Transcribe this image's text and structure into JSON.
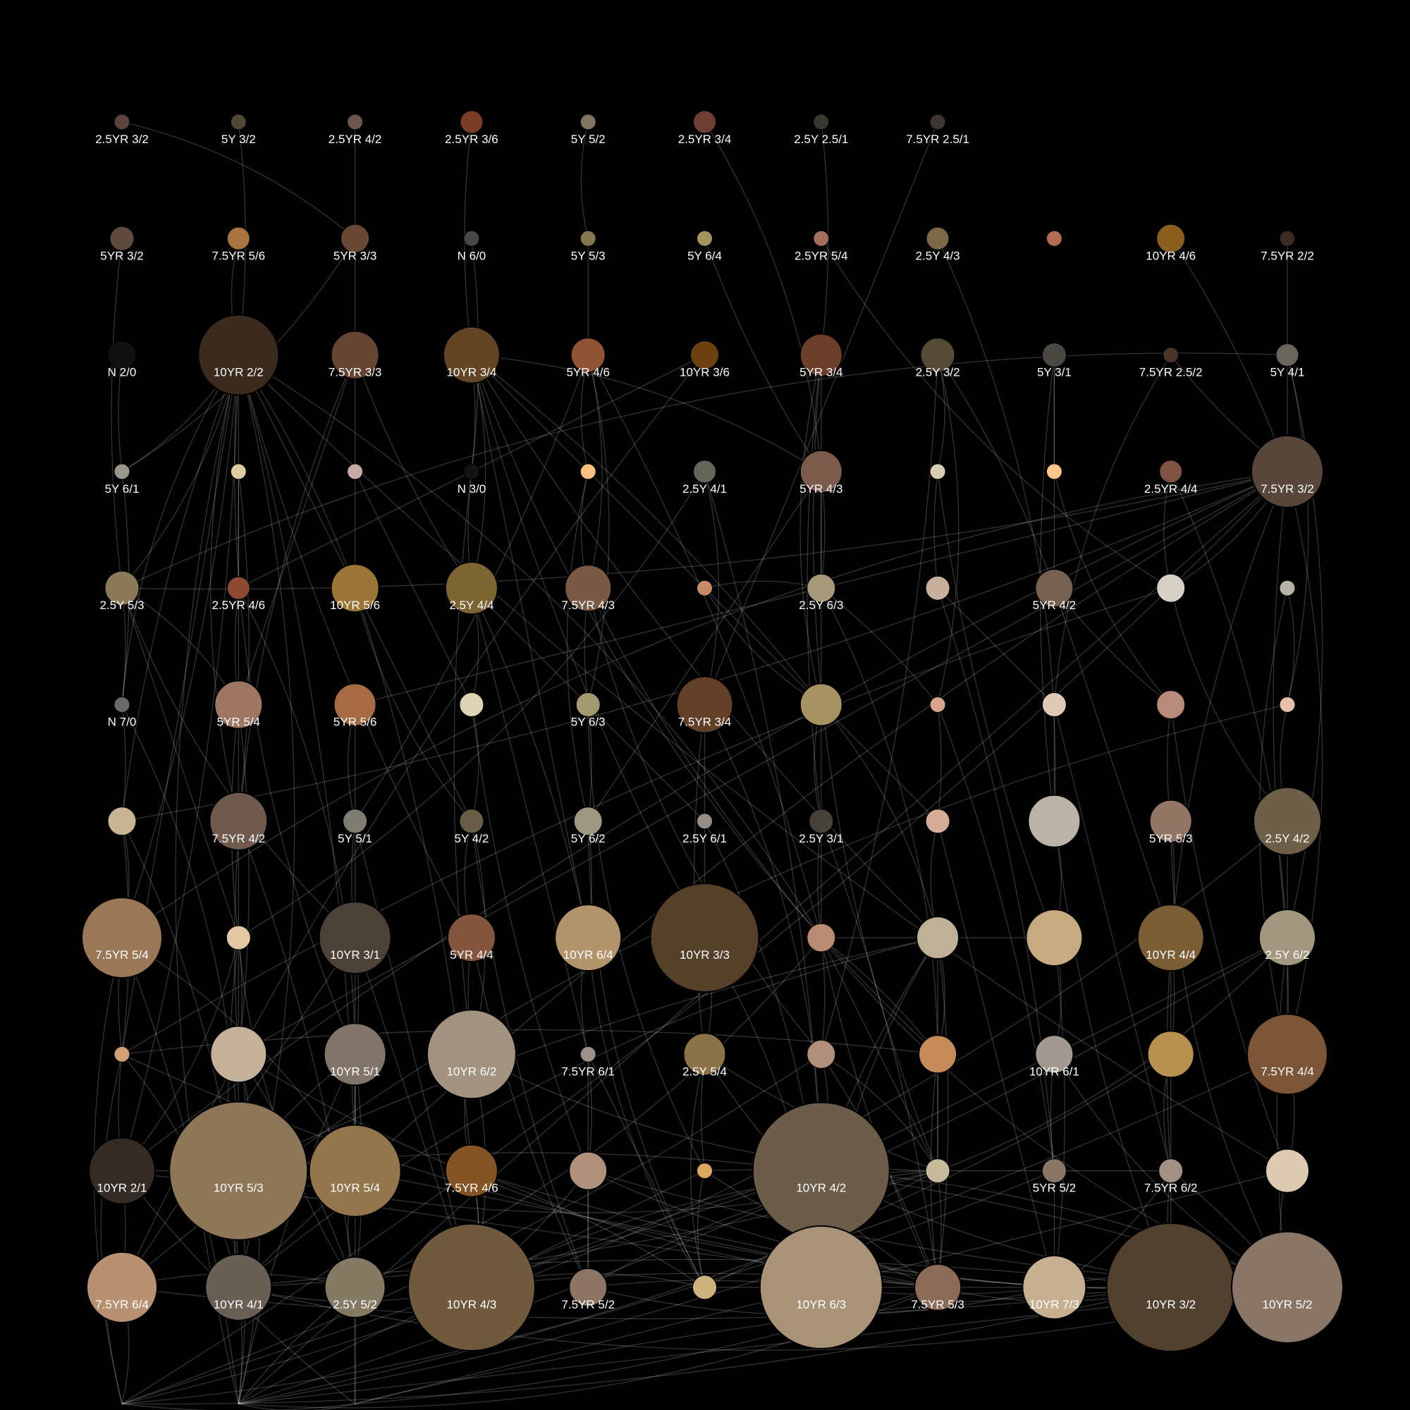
{
  "background": "#000000",
  "edge_color": "#ffffff",
  "label_color": "#ffffff",
  "nodes": [
    {
      "label": "2.5YR 3/2",
      "color": "#5a443b",
      "r": 11
    },
    {
      "label": "5Y 3/2",
      "color": "#4e4636",
      "r": 11
    },
    {
      "label": "2.5YR 4/2",
      "color": "#6d5550",
      "r": 11
    },
    {
      "label": "2.5YR 3/6",
      "color": "#7a3e26",
      "r": 16
    },
    {
      "label": "5Y 5/2",
      "color": "#7e7660",
      "r": 11
    },
    {
      "label": "2.5YR 3/4",
      "color": "#6e3d33",
      "r": 16
    },
    {
      "label": "2.5Y 2.5/1",
      "color": "#3a3630",
      "r": 11
    },
    {
      "label": "7.5YR 2.5/1",
      "color": "#3d3532",
      "r": 11
    },
    {
      "label": "5YR 3/2",
      "color": "#5f4a40",
      "r": 17
    },
    {
      "label": "7.5YR 5/6",
      "color": "#a9753f",
      "r": 16
    },
    {
      "label": "5YR 3/3",
      "color": "#694836",
      "r": 20
    },
    {
      "label": "N 6/0",
      "color": "#474747",
      "r": 11
    },
    {
      "label": "5Y 5/3",
      "color": "#85774f",
      "r": 11
    },
    {
      "label": "5Y 6/4",
      "color": "#a4955f",
      "r": 11
    },
    {
      "label": "2.5YR 5/4",
      "color": "#a36e5c",
      "r": 11
    },
    {
      "label": "2.5Y 4/3",
      "color": "#7d6847",
      "r": 16
    },
    {
      "label": "",
      "color": "#b36d52",
      "r": 11
    },
    {
      "label": "10YR 4/6",
      "color": "#8b5e20",
      "r": 20
    },
    {
      "label": "7.5YR 2/2",
      "color": "#3c2b22",
      "r": 11
    },
    {
      "label": "N 2/0",
      "color": "#111111",
      "r": 20
    },
    {
      "label": "10YR 2/2",
      "color": "#3b2b1e",
      "r": 57
    },
    {
      "label": "7.5YR 3/3",
      "color": "#664632",
      "r": 34
    },
    {
      "label": "10YR 3/4",
      "color": "#634424",
      "r": 40
    },
    {
      "label": "5YR 4/6",
      "color": "#8f5433",
      "r": 24
    },
    {
      "label": "10YR 3/6",
      "color": "#6b420f",
      "r": 20
    },
    {
      "label": "5YR 3/4",
      "color": "#6b3f2b",
      "r": 30
    },
    {
      "label": "2.5Y 3/2",
      "color": "#554a35",
      "r": 24
    },
    {
      "label": "5Y 3/1",
      "color": "#4b4843",
      "r": 17
    },
    {
      "label": "7.5YR 2.5/2",
      "color": "#4a3428",
      "r": 11
    },
    {
      "label": "5Y 4/1",
      "color": "#6a665c",
      "r": 16
    },
    {
      "label": "5Y 6/1",
      "color": "#9a968b",
      "r": 11
    },
    {
      "label": "",
      "color": "#dccca0",
      "r": 11
    },
    {
      "label": "",
      "color": "#c7aca5",
      "r": 11
    },
    {
      "label": "N 3/0",
      "color": "#141414",
      "r": 11
    },
    {
      "label": "",
      "color": "#ffc27f",
      "r": 11
    },
    {
      "label": "2.5Y 4/1",
      "color": "#67645a",
      "r": 16
    },
    {
      "label": "5YR 4/3",
      "color": "#7b5b4b",
      "r": 30
    },
    {
      "label": "",
      "color": "#d5ceb2",
      "r": 11
    },
    {
      "label": "",
      "color": "#ffc48c",
      "r": 11
    },
    {
      "label": "2.5YR 4/4",
      "color": "#7f5244",
      "r": 16
    },
    {
      "label": "7.5YR 3/2",
      "color": "#574639",
      "r": 51
    },
    {
      "label": "2.5Y 5/3",
      "color": "#8b7a5a",
      "r": 24
    },
    {
      "label": "2.5YR 4/6",
      "color": "#8c4a32",
      "r": 16
    },
    {
      "label": "10YR 5/6",
      "color": "#9b7535",
      "r": 34
    },
    {
      "label": "2.5Y 4/4",
      "color": "#7c6533",
      "r": 37
    },
    {
      "label": "7.5YR 4/3",
      "color": "#795a45",
      "r": 33
    },
    {
      "label": "",
      "color": "#c98a69",
      "r": 11
    },
    {
      "label": "2.5Y 6/3",
      "color": "#a7997a",
      "r": 20
    },
    {
      "label": "",
      "color": "#c8b09c",
      "r": 17
    },
    {
      "label": "5YR 4/2",
      "color": "#76604f",
      "r": 27
    },
    {
      "label": "",
      "color": "#d7d0c4",
      "r": 20
    },
    {
      "label": "",
      "color": "#b7b1a8",
      "r": 11
    },
    {
      "label": "N 7/0",
      "color": "#6a6a6a",
      "r": 11
    },
    {
      "label": "5YR 5/4",
      "color": "#9e7762",
      "r": 34
    },
    {
      "label": "5YR 5/6",
      "color": "#a76b44",
      "r": 30
    },
    {
      "label": "",
      "color": "#ddd3b5",
      "r": 17
    },
    {
      "label": "5Y 6/3",
      "color": "#a49a73",
      "r": 17
    },
    {
      "label": "7.5YR 3/4",
      "color": "#623f27",
      "r": 40
    },
    {
      "label": "",
      "color": "#a69361",
      "r": 30
    },
    {
      "label": "",
      "color": "#d6a58c",
      "r": 11
    },
    {
      "label": "",
      "color": "#ddc9b6",
      "r": 17
    },
    {
      "label": "",
      "color": "#b88a79",
      "r": 20
    },
    {
      "label": "",
      "color": "#e9c1a8",
      "r": 11
    },
    {
      "label": "",
      "color": "#c8b595",
      "r": 20
    },
    {
      "label": "7.5YR 4/2",
      "color": "#705a4e",
      "r": 41
    },
    {
      "label": "5Y 5/1",
      "color": "#7f7c72",
      "r": 17
    },
    {
      "label": "5Y 4/2",
      "color": "#695f49",
      "r": 17
    },
    {
      "label": "5Y 6/2",
      "color": "#9e9781",
      "r": 20
    },
    {
      "label": "2.5Y 6/1",
      "color": "#948f85",
      "r": 11
    },
    {
      "label": "2.5Y 3/1",
      "color": "#46423a",
      "r": 17
    },
    {
      "label": "",
      "color": "#d4ae98",
      "r": 17
    },
    {
      "label": "",
      "color": "#bbb3a8",
      "r": 37
    },
    {
      "label": "5YR 5/3",
      "color": "#937666",
      "r": 30
    },
    {
      "label": "2.5Y 4/2",
      "color": "#6d5f48",
      "r": 48
    },
    {
      "label": "7.5YR 5/4",
      "color": "#9a7756",
      "r": 57
    },
    {
      "label": "",
      "color": "#e2c9a3",
      "r": 17
    },
    {
      "label": "10YR 3/1",
      "color": "#4d4237",
      "r": 51
    },
    {
      "label": "5YR 4/4",
      "color": "#845640",
      "r": 34
    },
    {
      "label": "10YR 6/4",
      "color": "#b2946d",
      "r": 47
    },
    {
      "label": "10YR 3/3",
      "color": "#55402a",
      "r": 77
    },
    {
      "label": "",
      "color": "#ba8b72",
      "r": 20
    },
    {
      "label": "",
      "color": "#bfb198",
      "r": 30
    },
    {
      "label": "",
      "color": "#c6aa81",
      "r": 40
    },
    {
      "label": "10YR 4/4",
      "color": "#7c5e36",
      "r": 47
    },
    {
      "label": "2.5Y 6/2",
      "color": "#a39780",
      "r": 40
    },
    {
      "label": "",
      "color": "#d2a074",
      "r": 11
    },
    {
      "label": "",
      "color": "#c4b19a",
      "r": 40
    },
    {
      "label": "10YR 5/1",
      "color": "#807568",
      "r": 44
    },
    {
      "label": "10YR 6/2",
      "color": "#a29380",
      "r": 63
    },
    {
      "label": "7.5YR 6/1",
      "color": "#9c928a",
      "r": 11
    },
    {
      "label": "2.5Y 5/4",
      "color": "#8c7347",
      "r": 30
    },
    {
      "label": "",
      "color": "#b08f7a",
      "r": 20
    },
    {
      "label": "",
      "color": "#c58b58",
      "r": 27
    },
    {
      "label": "10YR 6/1",
      "color": "#a29990",
      "r": 27
    },
    {
      "label": "",
      "color": "#b89150",
      "r": 33
    },
    {
      "label": "7.5YR 4/4",
      "color": "#7c5637",
      "r": 57
    },
    {
      "label": "10YR 2/1",
      "color": "#342b25",
      "r": 47
    },
    {
      "label": "10YR 5/3",
      "color": "#8d7758",
      "r": 98
    },
    {
      "label": "10YR 5/4",
      "color": "#93764c",
      "r": 65
    },
    {
      "label": "7.5YR 4/6",
      "color": "#845425",
      "r": 37
    },
    {
      "label": "",
      "color": "#b0917c",
      "r": 27
    },
    {
      "label": "",
      "color": "#dca860",
      "r": 11
    },
    {
      "label": "10YR 4/2",
      "color": "#6b5d4a",
      "r": 97
    },
    {
      "label": "",
      "color": "#c8ba9d",
      "r": 17
    },
    {
      "label": "5YR 5/2",
      "color": "#8b7666",
      "r": 17
    },
    {
      "label": "7.5YR 6/2",
      "color": "#a39284",
      "r": 17
    },
    {
      "label": "",
      "color": "#ddcab3",
      "r": 31
    },
    {
      "label": "7.5YR 6/4",
      "color": "#b89173",
      "r": 50
    },
    {
      "label": "10YR 4/1",
      "color": "#6a5f54",
      "r": 47
    },
    {
      "label": "2.5Y 5/2",
      "color": "#857a64",
      "r": 43
    },
    {
      "label": "10YR 4/3",
      "color": "#705a3e",
      "r": 90
    },
    {
      "label": "7.5YR 5/2",
      "color": "#8c7565",
      "r": 27
    },
    {
      "label": "",
      "color": "#ccb27c",
      "r": 17
    },
    {
      "label": "10YR 6/3",
      "color": "#a99378",
      "r": 87
    },
    {
      "label": "7.5YR 5/3",
      "color": "#8c6c57",
      "r": 33
    },
    {
      "label": "10YR 7/3",
      "color": "#c7b092",
      "r": 45
    },
    {
      "label": "10YR 3/2",
      "color": "#52412f",
      "r": 91
    },
    {
      "label": "10YR 5/2",
      "color": "#897666",
      "r": 79
    }
  ],
  "edges": [
    [
      0,
      10
    ],
    [
      1,
      20
    ],
    [
      2,
      43
    ],
    [
      3,
      22
    ],
    [
      4,
      12
    ],
    [
      5,
      36
    ],
    [
      6,
      25
    ],
    [
      7,
      57
    ],
    [
      8,
      41
    ],
    [
      9,
      20
    ],
    [
      10,
      30
    ],
    [
      11,
      33
    ],
    [
      12,
      23
    ],
    [
      13,
      36
    ],
    [
      14,
      50
    ],
    [
      15,
      71
    ],
    [
      17,
      40
    ],
    [
      18,
      40
    ],
    [
      19,
      30
    ],
    [
      20,
      52
    ],
    [
      20,
      41
    ],
    [
      20,
      74
    ],
    [
      20,
      53
    ],
    [
      20,
      63
    ],
    [
      20,
      64
    ],
    [
      20,
      80
    ],
    [
      20,
      96
    ],
    [
      20,
      85
    ],
    [
      20,
      106
    ],
    [
      20,
      119
    ],
    [
      20,
      108
    ],
    [
      20,
      98
    ],
    [
      21,
      53
    ],
    [
      21,
      44
    ],
    [
      21,
      86
    ],
    [
      22,
      44
    ],
    [
      22,
      33
    ],
    [
      22,
      78
    ],
    [
      22,
      79
    ],
    [
      22,
      92
    ],
    [
      23,
      45
    ],
    [
      23,
      65
    ],
    [
      24,
      42
    ],
    [
      24,
      107
    ],
    [
      25,
      58
    ],
    [
      26,
      37
    ],
    [
      26,
      49
    ],
    [
      27,
      49
    ],
    [
      28,
      40
    ],
    [
      29,
      41
    ],
    [
      29,
      62
    ],
    [
      30,
      52
    ],
    [
      31,
      42
    ],
    [
      33,
      44
    ],
    [
      34,
      45
    ],
    [
      35,
      75
    ],
    [
      36,
      47
    ],
    [
      36,
      67
    ],
    [
      37,
      48
    ],
    [
      39,
      50
    ],
    [
      40,
      50
    ],
    [
      40,
      41
    ],
    [
      40,
      54
    ],
    [
      40,
      84
    ],
    [
      40,
      74
    ],
    [
      40,
      95
    ],
    [
      40,
      118
    ],
    [
      40,
      119
    ],
    [
      40,
      96
    ],
    [
      40,
      105
    ],
    [
      41,
      53
    ],
    [
      41,
      52
    ],
    [
      41,
      75
    ],
    [
      42,
      53
    ],
    [
      43,
      66
    ],
    [
      44,
      55
    ],
    [
      44,
      78
    ],
    [
      44,
      89
    ],
    [
      45,
      56
    ],
    [
      45,
      91
    ],
    [
      46,
      47
    ],
    [
      47,
      59
    ],
    [
      48,
      60
    ],
    [
      49,
      61
    ],
    [
      50,
      73
    ],
    [
      51,
      62
    ],
    [
      52,
      63
    ],
    [
      53,
      64
    ],
    [
      53,
      75
    ],
    [
      54,
      65
    ],
    [
      55,
      66
    ],
    [
      56,
      67
    ],
    [
      57,
      68
    ],
    [
      57,
      90
    ],
    [
      58,
      69
    ],
    [
      58,
      81
    ],
    [
      59,
      70
    ],
    [
      60,
      71
    ],
    [
      61,
      72
    ],
    [
      62,
      73
    ],
    [
      63,
      74
    ],
    [
      63,
      85
    ],
    [
      64,
      75
    ],
    [
      65,
      76
    ],
    [
      66,
      77
    ],
    [
      66,
      88
    ],
    [
      67,
      78
    ],
    [
      68,
      79
    ],
    [
      69,
      80
    ],
    [
      70,
      81
    ],
    [
      71,
      82
    ],
    [
      72,
      83
    ],
    [
      73,
      84
    ],
    [
      74,
      85
    ],
    [
      74,
      118
    ],
    [
      74,
      98
    ],
    [
      75,
      86
    ],
    [
      75,
      97
    ],
    [
      75,
      108
    ],
    [
      75,
      109
    ],
    [
      75,
      96
    ],
    [
      76,
      87
    ],
    [
      76,
      107
    ],
    [
      77,
      88
    ],
    [
      78,
      89
    ],
    [
      79,
      90
    ],
    [
      80,
      91
    ],
    [
      80,
      103
    ],
    [
      80,
      114
    ],
    [
      80,
      117
    ],
    [
      81,
      92
    ],
    [
      81,
      114
    ],
    [
      81,
      103
    ],
    [
      81,
      102
    ],
    [
      81,
      113
    ],
    [
      82,
      93
    ],
    [
      83,
      94
    ],
    [
      84,
      95
    ],
    [
      85,
      96
    ],
    [
      85,
      117
    ],
    [
      86,
      97
    ],
    [
      86,
      109
    ],
    [
      87,
      98
    ],
    [
      87,
      119
    ],
    [
      88,
      99
    ],
    [
      88,
      110
    ],
    [
      89,
      100
    ],
    [
      89,
      111
    ],
    [
      90,
      101
    ],
    [
      90,
      114
    ],
    [
      91,
      102
    ],
    [
      91,
      118
    ],
    [
      92,
      103
    ],
    [
      93,
      104
    ],
    [
      94,
      105
    ],
    [
      95,
      106
    ],
    [
      96,
      107
    ],
    [
      96,
      97
    ],
    [
      97,
      108
    ],
    [
      98,
      109
    ],
    [
      99,
      110
    ],
    [
      99,
      112
    ],
    [
      100,
      111
    ],
    [
      100,
      117
    ],
    [
      101,
      112
    ],
    [
      102,
      113
    ],
    [
      103,
      114
    ],
    [
      104,
      115
    ],
    [
      105,
      116
    ],
    [
      106,
      117
    ],
    [
      107,
      118
    ],
    [
      108,
      119
    ],
    [
      109,
      120
    ],
    [
      109,
      119
    ],
    [
      108,
      110
    ],
    [
      110,
      112
    ],
    [
      111,
      113
    ],
    [
      112,
      114
    ],
    [
      113,
      115
    ],
    [
      114,
      116
    ],
    [
      115,
      117
    ],
    [
      116,
      118
    ],
    [
      117,
      119
    ],
    [
      118,
      120
    ],
    [
      119,
      120
    ],
    [
      107,
      109
    ],
    [
      108,
      116
    ],
    [
      103,
      112
    ],
    [
      101,
      114
    ],
    [
      103,
      111
    ],
    [
      80,
      109
    ],
    [
      80,
      92
    ],
    [
      80,
      82
    ],
    [
      81,
      97
    ],
    [
      81,
      108
    ],
    [
      85,
      108
    ],
    [
      85,
      92
    ],
    [
      102,
      118
    ],
    [
      102,
      119
    ],
    [
      102,
      117
    ],
    [
      110,
      103
    ],
    [
      110,
      114
    ],
    [
      110,
      101
    ],
    [
      110,
      100
    ],
    [
      110,
      99
    ],
    [
      105,
      115
    ],
    [
      105,
      117
    ],
    [
      105,
      103
    ],
    [
      108,
      103
    ],
    [
      108,
      117
    ],
    [
      114,
      119
    ],
    [
      114,
      120
    ],
    [
      114,
      116
    ],
    [
      117,
      120
    ],
    [
      97,
      103
    ],
    [
      97,
      117
    ],
    [
      97,
      119
    ],
    [
      96,
      114
    ],
    [
      96,
      120
    ],
    [
      86,
      114
    ],
    [
      84,
      103
    ],
    [
      84,
      119
    ],
    [
      84,
      102
    ],
    [
      90,
      103
    ],
    [
      90,
      112
    ],
    [
      91,
      103
    ],
    [
      91,
      114
    ],
    [
      87,
      120
    ],
    [
      87,
      97
    ],
    [
      88,
      103
    ],
    [
      20,
      30
    ],
    [
      20,
      43
    ],
    [
      20,
      66
    ],
    [
      20,
      77
    ],
    [
      20,
      87
    ],
    [
      22,
      36
    ],
    [
      22,
      58
    ],
    [
      22,
      70
    ],
    [
      22,
      81
    ],
    [
      23,
      34
    ],
    [
      23,
      56
    ],
    [
      23,
      80
    ],
    [
      25,
      47
    ],
    [
      25,
      69
    ],
    [
      25,
      103
    ],
    [
      26,
      59
    ],
    [
      26,
      91
    ],
    [
      27,
      38
    ],
    [
      27,
      71
    ],
    [
      28,
      60
    ],
    [
      29,
      84
    ],
    [
      31,
      64
    ],
    [
      32,
      55
    ],
    [
      33,
      88
    ],
    [
      34,
      67
    ],
    [
      35,
      57
    ],
    [
      35,
      102
    ],
    [
      36,
      80
    ],
    [
      37,
      82
    ],
    [
      38,
      61
    ],
    [
      39,
      95
    ],
    [
      40,
      63
    ],
    [
      40,
      86
    ],
    [
      40,
      108
    ],
    [
      41,
      76
    ],
    [
      42,
      87
    ],
    [
      43,
      99
    ],
    [
      44,
      68
    ],
    [
      45,
      80
    ],
    [
      46,
      58
    ],
    [
      47,
      92
    ],
    [
      48,
      104
    ],
    [
      49,
      83
    ],
    [
      50,
      85
    ],
    [
      51,
      95
    ],
    [
      52,
      97
    ],
    [
      53,
      86
    ],
    [
      54,
      98
    ],
    [
      55,
      100
    ],
    [
      56,
      101
    ],
    [
      57,
      102
    ],
    [
      59,
      104
    ],
    [
      60,
      105
    ],
    [
      61,
      106
    ],
    [
      62,
      107
    ],
    [
      63,
      108
    ],
    [
      64,
      109
    ],
    [
      65,
      110
    ],
    [
      66,
      111
    ],
    [
      67,
      112
    ],
    [
      68,
      113
    ],
    [
      69,
      114
    ],
    [
      70,
      115
    ],
    [
      71,
      116
    ],
    [
      72,
      117
    ],
    [
      73,
      118
    ],
    [
      74,
      119
    ],
    [
      76,
      110
    ],
    [
      77,
      111
    ],
    [
      78,
      112
    ],
    [
      79,
      113
    ],
    [
      82,
      115
    ],
    [
      83,
      116
    ],
    [
      84,
      117
    ],
    [
      85,
      118
    ],
    [
      86,
      119
    ],
    [
      87,
      109
    ],
    [
      89,
      112
    ],
    [
      92,
      114
    ],
    [
      93,
      117
    ],
    [
      94,
      118
    ],
    [
      95,
      119
    ],
    [
      98,
      114
    ],
    [
      99,
      115
    ],
    [
      100,
      116
    ],
    [
      101,
      117
    ],
    [
      104,
      119
    ],
    [
      106,
      120
    ],
    [
      107,
      116
    ],
    [
      111,
      115
    ]
  ]
}
